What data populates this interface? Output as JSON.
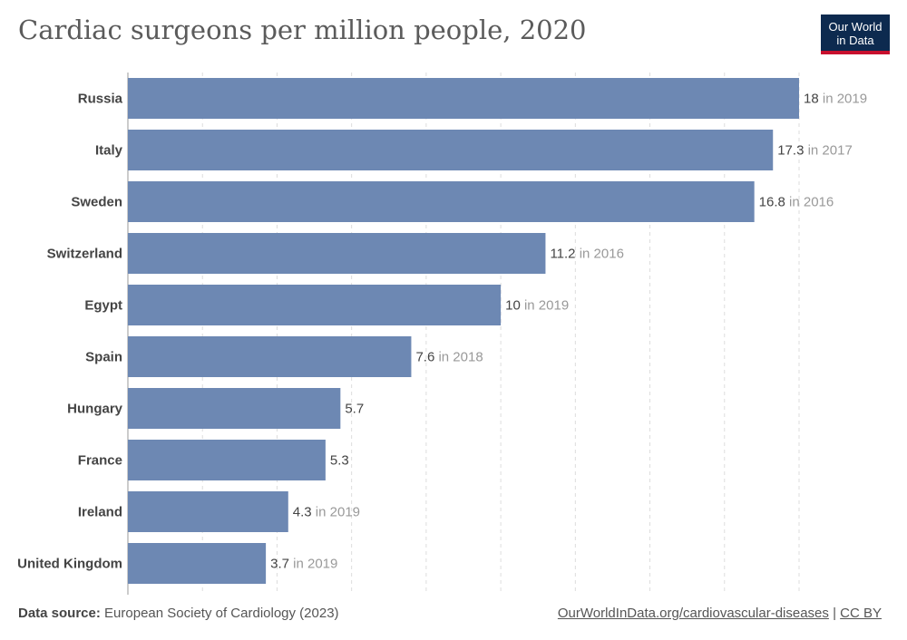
{
  "header": {
    "title": "Cardiac surgeons per million people, 2020",
    "logo_line1": "Our World",
    "logo_line2": "in Data"
  },
  "footer": {
    "source_label": "Data source:",
    "source_text": "European Society of Cardiology (2023)",
    "link_text": "OurWorldInData.org/cardiovascular-diseases",
    "separator": "|",
    "license": "CC BY"
  },
  "colors": {
    "bar": "#6d88b3",
    "value_text": "#444444",
    "year_text": "#999999",
    "grid": "#dddddd",
    "axis": "#999999"
  },
  "chart_data": {
    "type": "bar",
    "orientation": "horizontal",
    "title": "Cardiac surgeons per million people, 2020",
    "xlim": [
      0,
      18
    ],
    "grid": true,
    "categories": [
      "Russia",
      "Italy",
      "Sweden",
      "Switzerland",
      "Egypt",
      "Spain",
      "Hungary",
      "France",
      "Ireland",
      "United Kingdom"
    ],
    "values": [
      18,
      17.3,
      16.8,
      11.2,
      10,
      7.6,
      5.7,
      5.3,
      4.3,
      3.7
    ],
    "value_labels": [
      "18",
      "17.3",
      "16.8",
      "11.2",
      "10",
      "7.6",
      "5.7",
      "5.3",
      "4.3",
      "3.7"
    ],
    "year_notes": [
      "in 2019",
      "in 2017",
      "in 2016",
      "in 2016",
      "in 2019",
      "in 2018",
      "",
      "",
      "in 2019",
      "in 2019"
    ]
  }
}
